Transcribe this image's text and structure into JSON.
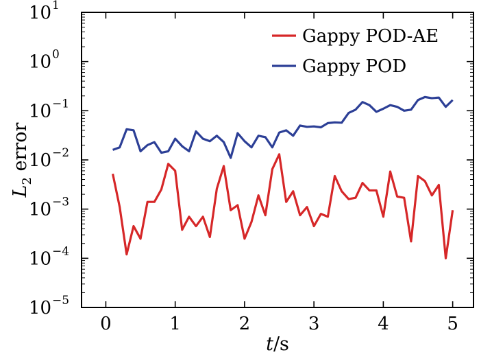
{
  "chart_data": {
    "type": "line",
    "title": "",
    "xlabel": "t/s",
    "ylabel": "L2 error",
    "yscale": "log",
    "xlim": [
      -0.35,
      5.3
    ],
    "ylim_exponents": [
      -5,
      1
    ],
    "xticks": [
      0,
      1,
      2,
      3,
      4,
      5
    ],
    "xtick_labels": [
      "0",
      "1",
      "2",
      "3",
      "4",
      "5"
    ],
    "ytick_exponents": [
      -5,
      -4,
      -3,
      -2,
      -1,
      0,
      1
    ],
    "ytick_labels": [
      "10",
      "10",
      "10",
      "10",
      "10",
      "10",
      "10"
    ],
    "ytick_superscripts": [
      "−5",
      "−4",
      "−3",
      "−2",
      "−1",
      "0",
      "1"
    ],
    "legend_position": "top-right",
    "x": [
      0.1,
      0.2,
      0.3,
      0.4,
      0.5,
      0.6,
      0.7,
      0.8,
      0.9,
      1.0,
      1.1,
      1.2,
      1.3,
      1.4,
      1.5,
      1.6,
      1.7,
      1.8,
      1.9,
      2.0,
      2.1,
      2.2,
      2.3,
      2.4,
      2.5,
      2.6,
      2.7,
      2.8,
      2.9,
      3.0,
      3.1,
      3.2,
      3.3,
      3.4,
      3.5,
      3.6,
      3.7,
      3.8,
      3.9,
      4.0,
      4.1,
      4.2,
      4.3,
      4.4,
      4.5,
      4.6,
      4.7,
      4.8,
      4.9,
      5.0
    ],
    "series": [
      {
        "name": "Gappy POD-AE",
        "color": "#d62728",
        "values": [
          0.0052,
          0.0011,
          0.00012,
          0.00045,
          0.00025,
          0.0014,
          0.0014,
          0.0025,
          0.0083,
          0.006,
          0.00038,
          0.0007,
          0.00045,
          0.0007,
          0.00027,
          0.0026,
          0.0075,
          0.00095,
          0.0012,
          0.00025,
          0.00055,
          0.0019,
          0.00075,
          0.0065,
          0.013,
          0.0014,
          0.0023,
          0.00075,
          0.0011,
          0.00045,
          0.0008,
          0.0007,
          0.0047,
          0.0023,
          0.0016,
          0.0017,
          0.0034,
          0.0024,
          0.0024,
          0.0007,
          0.0058,
          0.0018,
          0.0017,
          0.00022,
          0.0047,
          0.0037,
          0.0019,
          0.0031,
          0.0001,
          0.00095
        ]
      },
      {
        "name": "Gappy POD",
        "color": "#2c3f96",
        "values": [
          0.016,
          0.018,
          0.042,
          0.04,
          0.015,
          0.02,
          0.023,
          0.014,
          0.015,
          0.027,
          0.019,
          0.015,
          0.038,
          0.027,
          0.024,
          0.031,
          0.023,
          0.011,
          0.035,
          0.024,
          0.018,
          0.031,
          0.029,
          0.018,
          0.036,
          0.04,
          0.031,
          0.05,
          0.047,
          0.048,
          0.046,
          0.056,
          0.058,
          0.057,
          0.09,
          0.105,
          0.15,
          0.13,
          0.095,
          0.11,
          0.13,
          0.12,
          0.1,
          0.105,
          0.165,
          0.19,
          0.18,
          0.185,
          0.12,
          0.165
        ]
      }
    ]
  }
}
